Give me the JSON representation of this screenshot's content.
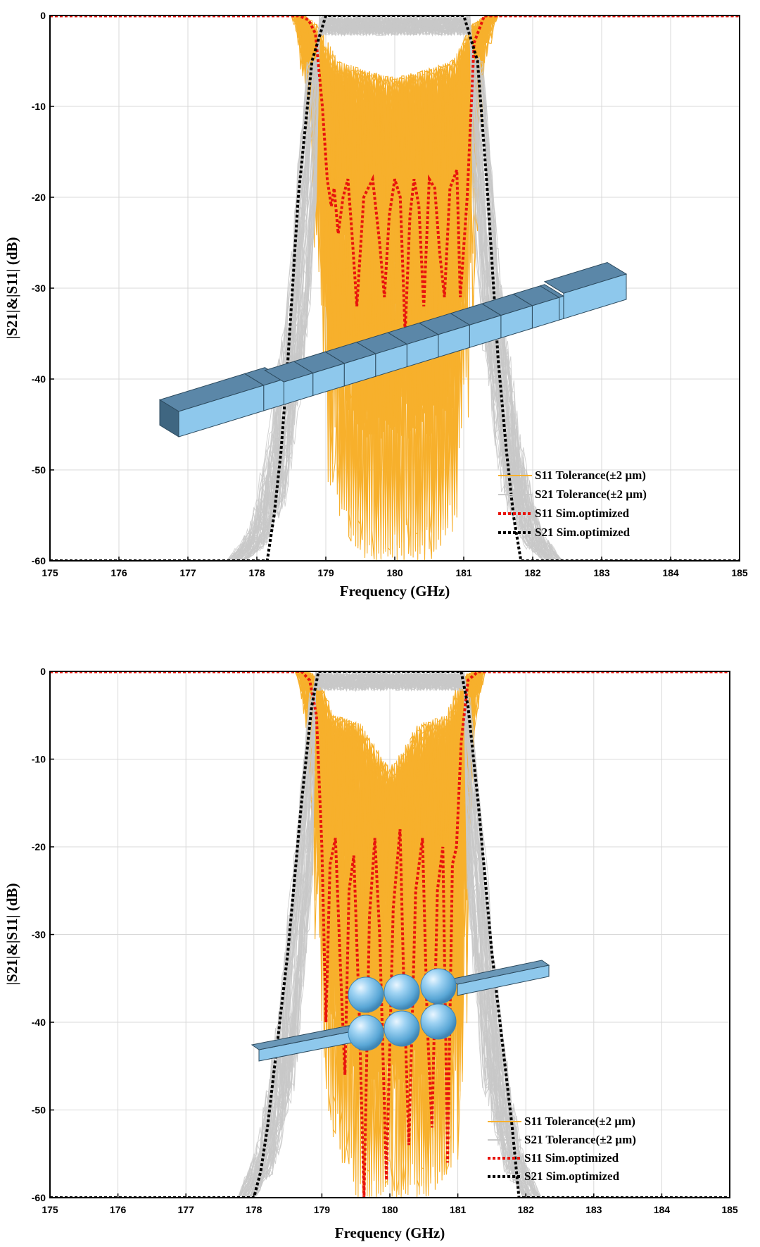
{
  "chart_data": [
    {
      "type": "line",
      "panel_label": "",
      "xlabel": "Frequency (GHz)",
      "ylabel": "|S21|&|S11| (dB)",
      "xlim": [
        175,
        185
      ],
      "ylim": [
        -60,
        0
      ],
      "xticks": [
        "175",
        "176",
        "177",
        "178",
        "179",
        "180",
        "181",
        "182",
        "183",
        "184",
        "185"
      ],
      "yticks": [
        "0",
        "-10",
        "-20",
        "-30",
        "-40",
        "-50",
        "-60"
      ],
      "grid": true,
      "legend_position": "bottom-right",
      "inset": "rectangular waveguide filter (cascaded cavities)",
      "series": [
        {
          "name": "S11 Tolerance(±2 µm)",
          "style": "solid",
          "color": "#F7B02C",
          "envelope_x": [
            175,
            178.6,
            178.8,
            178.95,
            179.1,
            179.5,
            180.0,
            180.5,
            180.9,
            181.05,
            181.2,
            181.4,
            185
          ],
          "envelope_upper": [
            0,
            0,
            -1,
            -3,
            -5,
            -6,
            -7,
            -6,
            -5,
            -3,
            -1,
            0,
            0
          ],
          "envelope_lower": [
            0,
            0,
            -10,
            -30,
            -52,
            -60,
            -60,
            -60,
            -55,
            -35,
            -8,
            0,
            0
          ]
        },
        {
          "name": "S21 Tolerance(±2 µm)",
          "style": "solid",
          "color": "#C8C8C8",
          "envelope_x": [
            175,
            177.7,
            178.0,
            178.3,
            178.6,
            178.85,
            181.15,
            181.4,
            181.7,
            182.0,
            182.3,
            185
          ],
          "envelope_upper": [
            -60,
            -60,
            -55,
            -40,
            -20,
            -2,
            -2,
            -20,
            -40,
            -55,
            -60,
            -60
          ],
          "envelope_lower": [
            -60,
            -60,
            -60,
            -60,
            -45,
            -10,
            -10,
            -45,
            -60,
            -60,
            -60,
            -60
          ]
        },
        {
          "name": "S11 Sim.optimized",
          "style": "dotted",
          "color": "#E8140C",
          "x": [
            175,
            178.6,
            178.75,
            178.85,
            178.95,
            179.02,
            179.08,
            179.12,
            179.18,
            179.25,
            179.32,
            179.38,
            179.45,
            179.55,
            179.68,
            179.78,
            179.85,
            179.92,
            180.0,
            180.08,
            180.15,
            180.22,
            180.28,
            180.35,
            180.42,
            180.5,
            180.58,
            180.65,
            180.72,
            180.8,
            180.9,
            180.95,
            181.05,
            181.15,
            181.3,
            185
          ],
          "y": [
            0,
            0,
            -0.5,
            -2,
            -10,
            -18,
            -21,
            -19,
            -24,
            -20,
            -18,
            -24,
            -32,
            -20,
            -18,
            -25,
            -31,
            -22,
            -18,
            -20,
            -35,
            -22,
            -18,
            -21,
            -32,
            -18,
            -19,
            -26,
            -31,
            -19,
            -17,
            -31,
            -20,
            -3,
            0,
            0
          ]
        },
        {
          "name": "S21 Sim.optimized",
          "style": "dotted",
          "color": "#000000",
          "x": [
            175,
            178.05,
            178.15,
            178.25,
            178.35,
            178.45,
            178.6,
            178.8,
            179.0,
            181.0,
            181.2,
            181.35,
            181.5,
            181.62,
            181.72,
            181.83,
            181.95,
            185
          ],
          "y": [
            -60,
            -60,
            -60,
            -55,
            -48,
            -38,
            -20,
            -5,
            0,
            0,
            -5,
            -20,
            -38,
            -48,
            -55,
            -60,
            -60,
            -60
          ]
        }
      ]
    },
    {
      "type": "line",
      "panel_label": "",
      "xlabel": "Frequency (GHz)",
      "ylabel": "|S21|&|S11| (dB)",
      "xlim": [
        175,
        185
      ],
      "ylim": [
        -60,
        0
      ],
      "xticks": [
        "175",
        "176",
        "177",
        "178",
        "179",
        "180",
        "181",
        "182",
        "183",
        "184",
        "185"
      ],
      "yticks": [
        "0",
        "-10",
        "-20",
        "-30",
        "-40",
        "-50",
        "-60"
      ],
      "grid": true,
      "legend_position": "bottom-right",
      "inset": "spherical-cavity waveguide filter (six spheres)",
      "series": [
        {
          "name": "S11 Tolerance(±2 µm)",
          "style": "solid",
          "color": "#F7B02C",
          "envelope_x": [
            175,
            178.7,
            178.85,
            178.95,
            179.1,
            179.5,
            180.0,
            180.5,
            180.9,
            181.05,
            181.15,
            181.3,
            185
          ],
          "envelope_upper": [
            0,
            0,
            -0.5,
            -2,
            -5,
            -6,
            -12,
            -6,
            -5,
            -2,
            -0.5,
            0,
            0
          ],
          "envelope_lower": [
            0,
            0,
            -8,
            -25,
            -50,
            -60,
            -60,
            -60,
            -58,
            -40,
            -10,
            0,
            0
          ]
        },
        {
          "name": "S21 Tolerance(±2 µm)",
          "style": "solid",
          "color": "#C8C8C8",
          "envelope_x": [
            175,
            177.9,
            178.2,
            178.5,
            178.75,
            178.95,
            181.05,
            181.25,
            181.5,
            181.8,
            182.1,
            185
          ],
          "envelope_upper": [
            -60,
            -60,
            -50,
            -30,
            -12,
            -1,
            -1,
            -12,
            -30,
            -50,
            -60,
            -60
          ],
          "envelope_lower": [
            -60,
            -60,
            -60,
            -55,
            -30,
            -5,
            -5,
            -30,
            -55,
            -60,
            -60,
            -60
          ]
        },
        {
          "name": "S11 Sim.optimized",
          "style": "dotted",
          "color": "#E8140C",
          "x": [
            175,
            178.7,
            178.82,
            178.92,
            179.0,
            179.06,
            179.12,
            179.2,
            179.28,
            179.34,
            179.4,
            179.47,
            179.55,
            179.62,
            179.7,
            179.78,
            179.85,
            179.95,
            180.05,
            180.15,
            180.2,
            180.28,
            180.38,
            180.48,
            180.55,
            180.62,
            180.7,
            180.78,
            180.85,
            180.92,
            180.98,
            181.05,
            181.15,
            181.3,
            185
          ],
          "y": [
            0,
            0,
            -1,
            -5,
            -20,
            -40,
            -22,
            -19,
            -35,
            -46,
            -25,
            -21,
            -39,
            -60,
            -28,
            -19,
            -30,
            -58,
            -27,
            -18,
            -34,
            -54,
            -25,
            -19,
            -40,
            -52,
            -25,
            -20,
            -56,
            -22,
            -20,
            -8,
            -1,
            0,
            0
          ]
        },
        {
          "name": "S21 Sim.optimized",
          "style": "dotted",
          "color": "#000000",
          "x": [
            175,
            178.0,
            178.1,
            178.2,
            178.35,
            178.5,
            178.7,
            178.85,
            178.95,
            181.05,
            181.15,
            181.3,
            181.5,
            181.65,
            181.8,
            181.9,
            185
          ],
          "y": [
            -60,
            -60,
            -57,
            -52,
            -42,
            -32,
            -15,
            -4,
            0,
            0,
            -4,
            -15,
            -32,
            -42,
            -52,
            -60,
            -60
          ]
        }
      ]
    }
  ]
}
